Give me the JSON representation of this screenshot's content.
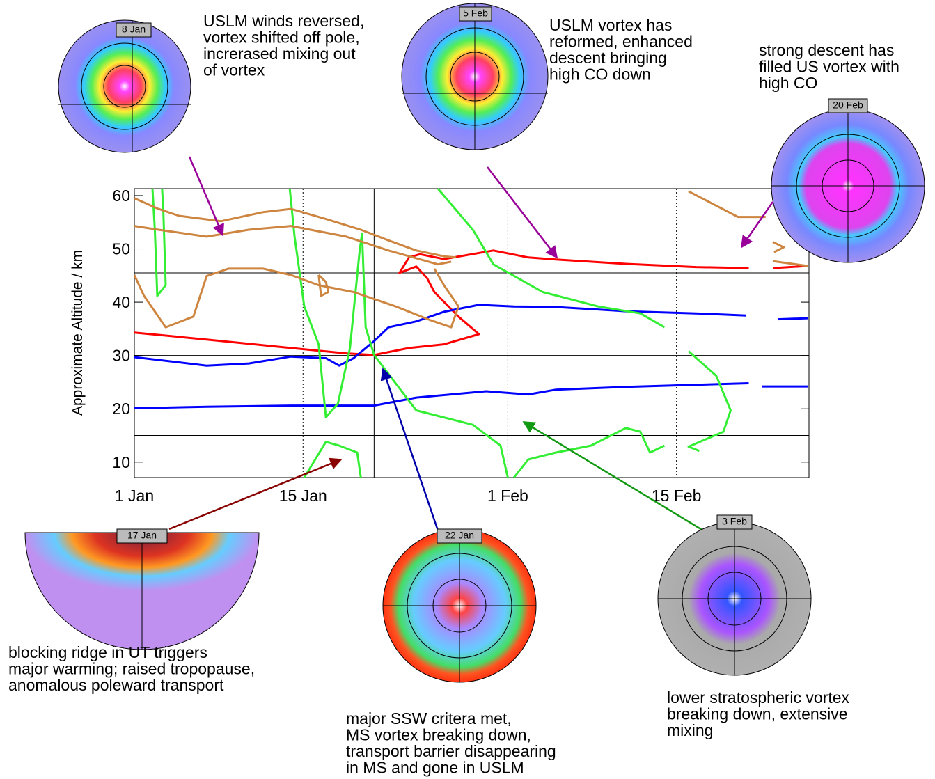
{
  "chart_data": {
    "type": "line",
    "ylabel": "Approximate Altitude / km",
    "xlim": [
      0,
      56
    ],
    "ylim": [
      7.1,
      61.3
    ],
    "xticks": [
      {
        "value": 0,
        "label": "1 Jan"
      },
      {
        "value": 14,
        "label": "15 Jan"
      },
      {
        "value": 31,
        "label": "1 Feb"
      },
      {
        "value": 45,
        "label": "15 Feb"
      }
    ],
    "yticks": [
      10,
      20,
      30,
      40,
      50,
      60
    ],
    "hlines": [
      15,
      30,
      45.5
    ],
    "vlines": [
      19.9
    ],
    "series": [
      {
        "color": "#ff0000",
        "x": [
          0,
          6.0,
          13.0,
          17.6,
          19.9,
          22.8,
          25.7,
          28.6,
          26.9,
          24.9,
          24.3,
          23.4,
          22.0,
          22.8,
          23.7,
          25.7,
          29.8,
          32.7,
          35.0,
          40.8,
          46.6,
          51.0,
          null,
          53.0,
          55.9
        ],
        "values": [
          34.3,
          33.0,
          31.4,
          30.4,
          30.1,
          31.4,
          32.1,
          34.0,
          37.3,
          41.9,
          44.5,
          46.7,
          45.5,
          48.4,
          49.0,
          48.1,
          49.7,
          48.4,
          48.0,
          47.2,
          46.6,
          46.4,
          null,
          46.4,
          46.8
        ]
      },
      {
        "color": "#0000ff",
        "x": [
          0,
          6.0,
          9.5,
          13.0,
          15.9,
          17.0,
          18.2,
          19.9,
          21.1,
          23.4,
          25.7,
          28.6,
          31.5,
          35.0,
          40.8,
          46.6,
          50.8,
          null,
          53.4,
          55.9
        ],
        "values": [
          29.7,
          28.1,
          28.5,
          29.8,
          29.5,
          28.1,
          29.5,
          32.7,
          35.3,
          36.4,
          38.2,
          39.5,
          39.2,
          39.1,
          38.3,
          37.9,
          37.5,
          null,
          36.8,
          37.0
        ]
      },
      {
        "color": "#0000ff",
        "x": [
          0,
          6.0,
          13.0,
          17.0,
          19.9,
          23.4,
          29.2,
          32.7,
          35.0,
          40.8,
          46.6,
          51.0,
          null,
          52.1,
          55.9
        ],
        "values": [
          20.1,
          20.4,
          20.6,
          20.6,
          20.6,
          22.1,
          23.3,
          22.7,
          23.6,
          24.1,
          24.5,
          24.8,
          null,
          24.2,
          24.2
        ]
      },
      {
        "color": "#33ee33",
        "x": [
          1.5,
          1.7,
          1.9,
          2.6,
          2.4,
          2.3
        ],
        "values": [
          61.3,
          53.6,
          41.2,
          43.2,
          57.5,
          61.3
        ]
      },
      {
        "color": "#33ee33",
        "x": [
          12.9,
          13.3,
          13.7,
          14.1,
          15.3,
          15.9,
          16.9,
          17.9,
          18.7,
          18.9,
          19.2,
          19.9,
          23.4,
          28.1,
          30.4,
          31.0
        ],
        "values": [
          61.3,
          52.3,
          45.8,
          39.2,
          32.1,
          18.4,
          21.0,
          31.4,
          49.7,
          52.9,
          35.3,
          30.1,
          19.7,
          17.0,
          13.1,
          7.1
        ]
      },
      {
        "color": "#33ee33",
        "x": [
          25.2,
          28.1,
          29.8,
          33.9,
          38.5,
          42.0,
          44.0
        ],
        "values": [
          61.3,
          53.6,
          47.1,
          41.9,
          39.2,
          37.9,
          35.3
        ]
      },
      {
        "color": "#33ee33",
        "x": [
          14.1,
          15.9,
          17.0,
          18.5,
          18.8
        ],
        "values": [
          7.1,
          13.8,
          13.1,
          11.8,
          7.1
        ]
      },
      {
        "color": "#33ee33",
        "x": [
          31.5,
          32.7,
          35.0,
          37.9,
          40.8,
          42.0,
          42.8,
          44.0
        ],
        "values": [
          7.1,
          10.5,
          11.8,
          13.1,
          16.4,
          15.7,
          11.8,
          13.1
        ]
      },
      {
        "color": "#33ee33",
        "x": [
          46.0,
          48.3,
          49.5,
          48.9,
          46.0,
          46.9
        ],
        "values": [
          30.8,
          26.2,
          19.7,
          15.7,
          12.9,
          12.1
        ]
      },
      {
        "color": "#cd8540",
        "x": [
          0,
          2.0,
          3.7,
          7.2,
          10.7,
          13.0,
          15.9,
          18.8,
          21.1,
          23.4,
          25.7,
          26.7
        ],
        "values": [
          59.5,
          57.5,
          56.2,
          55.2,
          56.9,
          57.5,
          55.6,
          53.6,
          51.6,
          49.7,
          48.6,
          48.4
        ]
      },
      {
        "color": "#cd8540",
        "x": [
          0,
          2.0,
          6.0,
          9.5,
          13.0,
          17.6,
          21.1,
          25.2,
          26.3
        ],
        "values": [
          54.3,
          53.6,
          52.3,
          53.6,
          54.3,
          52.3,
          49.7,
          47.1,
          47.6
        ]
      },
      {
        "color": "#cd8540",
        "x": [
          0,
          0.8,
          2.6,
          4.9,
          6.0,
          7.8,
          10.7,
          13.0,
          15.3,
          18.2,
          21.7,
          24.6,
          26.3,
          26.9,
          25.7,
          24.9
        ],
        "values": [
          45.1,
          41.2,
          35.3,
          37.3,
          44.9,
          46.3,
          46.3,
          45.1,
          43.2,
          41.9,
          39.2,
          36.6,
          35.3,
          39.2,
          43.2,
          46.3
        ]
      },
      {
        "color": "#cd8540",
        "x": [
          15.3,
          15.9,
          16.1,
          15.5,
          15.3
        ],
        "values": [
          45.1,
          43.8,
          41.9,
          41.2,
          45.1
        ]
      },
      {
        "color": "#cd8540",
        "x": [
          46.0,
          50.1,
          52.4,
          null,
          53.0,
          53.9,
          53.1,
          null,
          53.0,
          55.9
        ],
        "values": [
          60.8,
          56.0,
          56.0,
          null,
          51.3,
          50.3,
          49.4,
          null,
          47.7,
          46.8
        ]
      }
    ],
    "insets": [
      {
        "date": "8 Jan",
        "text": [
          "USLM winds reversed,",
          "vortex shifted off pole,",
          "increrased mixing out",
          "of vortex"
        ]
      },
      {
        "date": "5 Feb",
        "text": [
          "USLM vortex has",
          "reformed, enhanced",
          "descent bringing",
          "high CO down"
        ]
      },
      {
        "date": "20 Feb",
        "text": [
          "strong descent has",
          "filled US vortex with",
          "high CO"
        ]
      },
      {
        "date": "17 Jan",
        "text": [
          "blocking ridge in UT triggers",
          "major warming; raised tropopause,",
          "anomalous poleward transport"
        ]
      },
      {
        "date": "22 Jan",
        "text": [
          "major SSW critera met,",
          "MS vortex breaking down,",
          "transport barrier disappearing",
          "in MS and gone in USLM"
        ]
      },
      {
        "date": "3 Feb",
        "text": [
          "lower stratospheric vortex",
          "breaking down, extensive",
          "mixing"
        ]
      }
    ]
  }
}
